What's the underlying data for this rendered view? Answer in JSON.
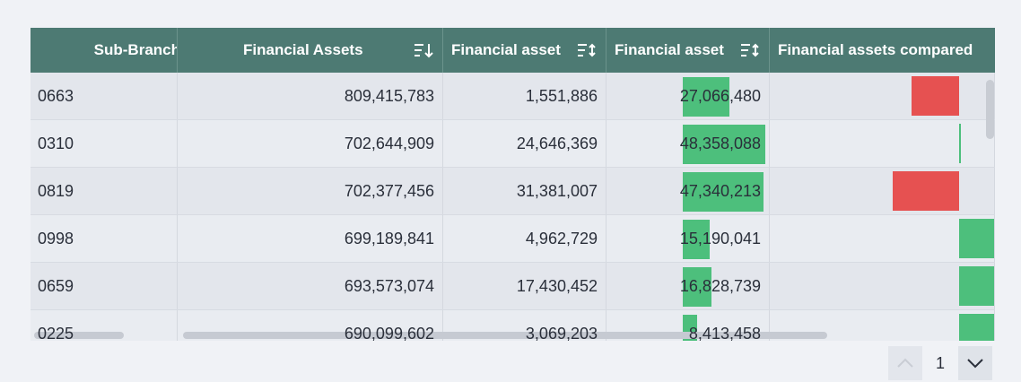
{
  "columns": [
    {
      "label": "Sub-Branch",
      "sort": "none"
    },
    {
      "label": "Financial Assets",
      "sort": "desc"
    },
    {
      "label": "Financial asset",
      "sort": "none"
    },
    {
      "label": "Financial asset",
      "sort": "both"
    },
    {
      "label": "Financial assets compared",
      "sort": "none"
    }
  ],
  "rows": [
    {
      "sub_branch": "0663",
      "financial_assets": "809,415,783",
      "col3": "1,551,886",
      "col4": "27,066,480",
      "col4_bar_fraction": 0.26,
      "compare_bar": {
        "direction": "negative",
        "magnitude": 0.3
      }
    },
    {
      "sub_branch": "0310",
      "financial_assets": "702,644,909",
      "col3": "24,646,369",
      "col4": "48,358,088",
      "col4_bar_fraction": 0.46,
      "compare_bar": {
        "direction": "positive",
        "magnitude": 0.01
      }
    },
    {
      "sub_branch": "0819",
      "financial_assets": "702,377,456",
      "col3": "31,381,007",
      "col4": "47,340,213",
      "col4_bar_fraction": 0.45,
      "compare_bar": {
        "direction": "negative",
        "magnitude": 0.42
      }
    },
    {
      "sub_branch": "0998",
      "financial_assets": "699,189,841",
      "col3": "4,962,729",
      "col4": "15,190,041",
      "col4_bar_fraction": 0.15,
      "compare_bar": {
        "direction": "positive",
        "magnitude": 0.25
      }
    },
    {
      "sub_branch": "0659",
      "financial_assets": "693,573,074",
      "col3": "17,430,452",
      "col4": "16,828,739",
      "col4_bar_fraction": 0.16,
      "compare_bar": {
        "direction": "positive",
        "magnitude": 0.25
      }
    },
    {
      "sub_branch": "0225",
      "financial_assets": "690,099,602",
      "col3": "3,069,203",
      "col4": "8,413,458",
      "col4_bar_fraction": 0.08,
      "compare_bar": {
        "direction": "positive",
        "magnitude": 0.25
      }
    }
  ],
  "colors": {
    "header_bg": "#4d7a73",
    "positive": "#4dbf7c",
    "negative": "#e65151"
  },
  "pager": {
    "current_page": "1"
  }
}
